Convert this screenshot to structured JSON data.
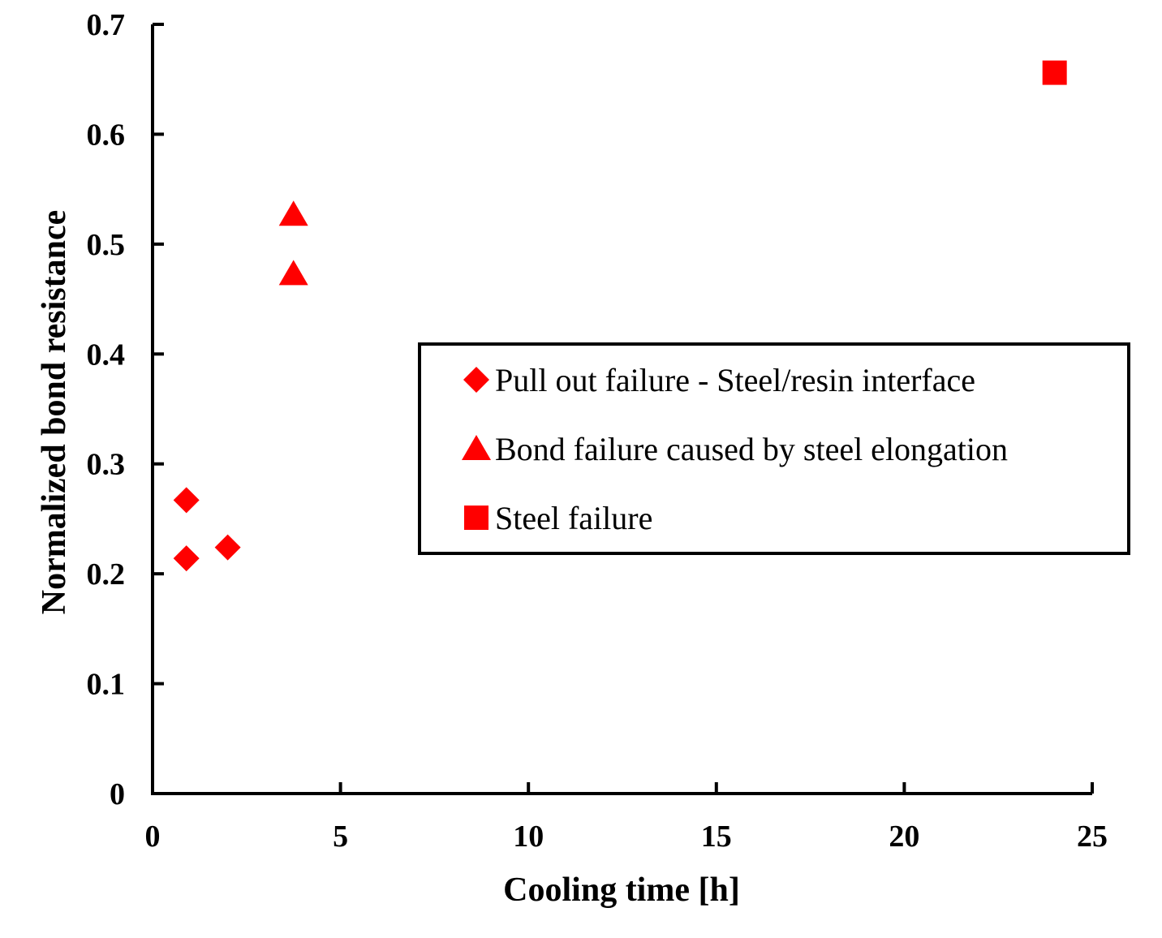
{
  "chart_data": {
    "type": "scatter",
    "title": "",
    "xlabel": "Cooling time [h]",
    "ylabel": "Normalized bond resistance",
    "xlim": [
      0,
      25
    ],
    "ylim": [
      0,
      0.7
    ],
    "xticks": [
      0,
      5,
      10,
      15,
      20,
      25
    ],
    "yticks": [
      0,
      0.1,
      0.2,
      0.3,
      0.4,
      0.5,
      0.6,
      0.7
    ],
    "xtick_labels": [
      "0",
      "5",
      "10",
      "15",
      "20",
      "25"
    ],
    "ytick_labels": [
      "0",
      "0.1",
      "0.2",
      "0.3",
      "0.4",
      "0.5",
      "0.6",
      "0.7"
    ],
    "grid": false,
    "legend_position": "center-right",
    "series": [
      {
        "name": "Pull out failure - Steel/resin interface",
        "marker": "diamond",
        "color": "#ff0000",
        "points": [
          {
            "x": 0.9,
            "y": 0.267
          },
          {
            "x": 0.9,
            "y": 0.214
          },
          {
            "x": 2.0,
            "y": 0.224
          }
        ]
      },
      {
        "name": "Bond failure caused by steel elongation",
        "marker": "triangle",
        "color": "#ff0000",
        "points": [
          {
            "x": 3.75,
            "y": 0.527
          },
          {
            "x": 3.75,
            "y": 0.473
          }
        ]
      },
      {
        "name": "Steel failure",
        "marker": "square",
        "color": "#ff0000",
        "points": [
          {
            "x": 24.0,
            "y": 0.656
          }
        ]
      }
    ]
  }
}
